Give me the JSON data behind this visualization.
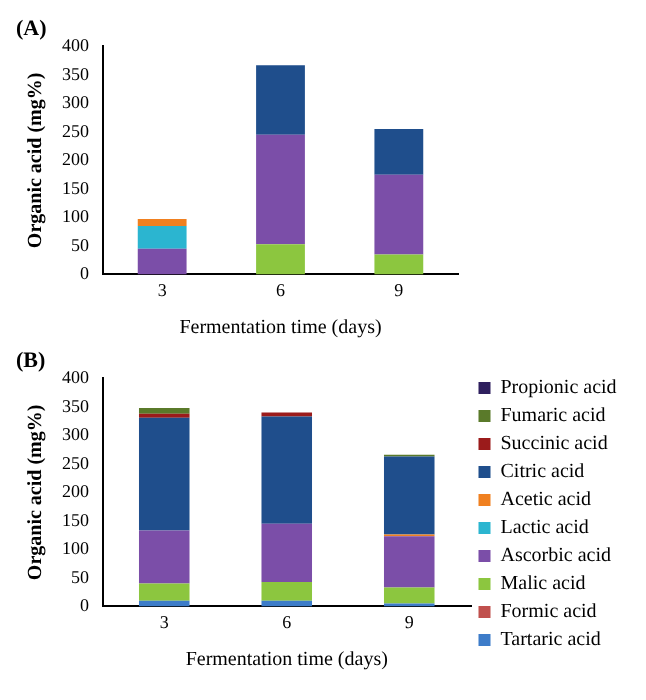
{
  "chart_data": [
    {
      "type": "bar",
      "title": "(A)",
      "xlabel": "Fermentation time (days)",
      "ylabel": "Organic acid (mg%)",
      "categories": [
        "3",
        "6",
        "9"
      ],
      "stacked": true,
      "ylim": [
        0,
        400
      ],
      "yticks": [
        0,
        50,
        100,
        150,
        200,
        250,
        300,
        350,
        400
      ],
      "grid": false,
      "legend": false,
      "series": [
        {
          "color": "#8cc63f",
          "values": [
            null,
            53,
            35
          ]
        },
        {
          "color": "#7b4ea8",
          "values": [
            45,
            192,
            140
          ]
        },
        {
          "color": "#2bb5d0",
          "values": [
            40,
            null,
            null
          ]
        },
        {
          "color": "#f08020",
          "values": [
            12,
            null,
            null
          ]
        },
        {
          "color": "#1f4e8c",
          "values": [
            null,
            122,
            80
          ]
        }
      ]
    },
    {
      "type": "bar",
      "title": "(B)",
      "xlabel": "Fermentation time (days)",
      "ylabel": "Organic acid (mg%)",
      "categories": [
        "3",
        "6",
        "9"
      ],
      "stacked": true,
      "ylim": [
        0,
        400
      ],
      "yticks": [
        0,
        50,
        100,
        150,
        200,
        250,
        300,
        350,
        400
      ],
      "grid": false,
      "legend": "right",
      "series": [
        {
          "name": "Tartaric acid",
          "color": "#3d7cc9",
          "values": [
            10,
            10,
            5
          ]
        },
        {
          "name": "Formic acid",
          "color": "#c0504d",
          "values": [
            null,
            null,
            null
          ]
        },
        {
          "name": "Malic acid",
          "color": "#8cc63f",
          "values": [
            30,
            33,
            28
          ]
        },
        {
          "name": "Ascorbic acid",
          "color": "#7b4ea8",
          "values": [
            93,
            102,
            90
          ]
        },
        {
          "name": "Lactic acid",
          "color": "#2bb5d0",
          "values": [
            null,
            null,
            null
          ]
        },
        {
          "name": "Acetic acid",
          "color": "#f08020",
          "values": [
            null,
            null,
            3
          ]
        },
        {
          "name": "Citric acid",
          "color": "#1f4e8c",
          "values": [
            198,
            188,
            137
          ]
        },
        {
          "name": "Succinic acid",
          "color": "#9b1b1b",
          "values": [
            7,
            7,
            null
          ]
        },
        {
          "name": "Fumaric acid",
          "color": "#5a7a2a",
          "values": [
            10,
            null,
            3
          ]
        },
        {
          "name": "Propionic acid",
          "color": "#2e1f5e",
          "values": [
            null,
            null,
            null
          ]
        }
      ]
    }
  ]
}
